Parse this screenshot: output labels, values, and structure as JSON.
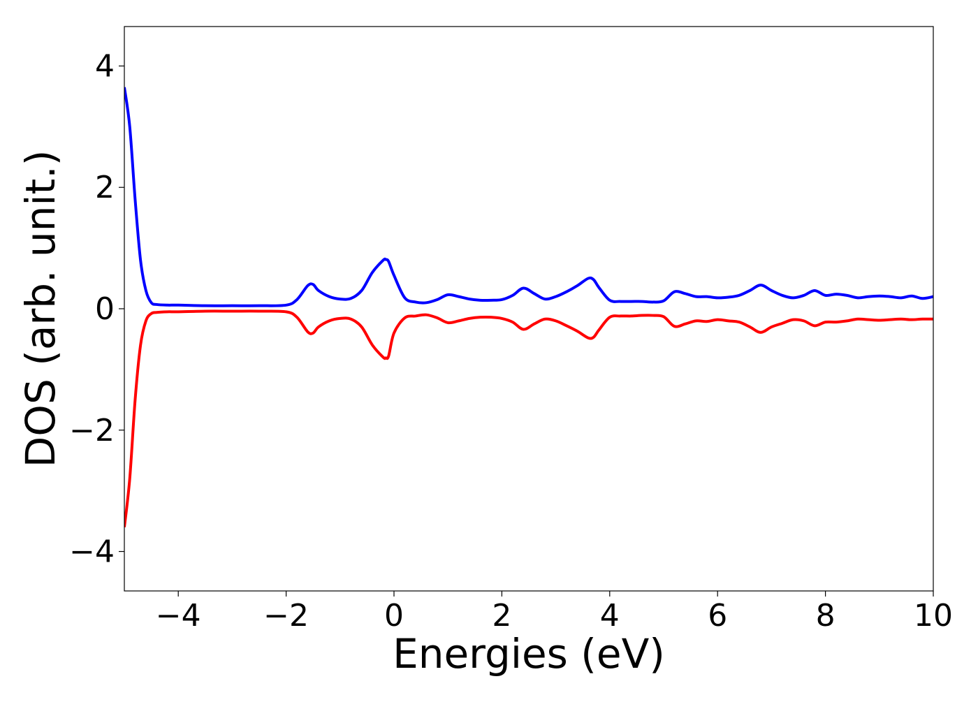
{
  "chart_data": {
    "type": "line",
    "title": "",
    "xlabel": "Energies (eV)",
    "ylabel": "DOS (arb. unit.)",
    "xlim": [
      -5,
      10
    ],
    "ylim": [
      -4.65,
      4.65
    ],
    "xticks": [
      -4,
      -2,
      0,
      2,
      4,
      6,
      8,
      10
    ],
    "yticks": [
      -4,
      -2,
      0,
      2,
      4
    ],
    "xtick_labels": [
      "−4",
      "−2",
      "0",
      "2",
      "4",
      "6",
      "8",
      "10"
    ],
    "ytick_labels": [
      "−4",
      "−2",
      "0",
      "2",
      "4"
    ],
    "grid": false,
    "legend": false,
    "series": [
      {
        "color": "#0000ff",
        "x": [
          -5.0,
          -4.9,
          -4.8,
          -4.7,
          -4.6,
          -4.5,
          -4.4,
          -4.2,
          -4.0,
          -3.5,
          -3.0,
          -2.5,
          -2.0,
          -1.8,
          -1.6,
          -1.5,
          -1.4,
          -1.2,
          -1.0,
          -0.8,
          -0.6,
          -0.4,
          -0.2,
          -0.15,
          -0.1,
          0.0,
          0.2,
          0.4,
          0.6,
          0.8,
          1.0,
          1.2,
          1.4,
          1.6,
          1.8,
          2.0,
          2.2,
          2.4,
          2.6,
          2.8,
          3.0,
          3.2,
          3.4,
          3.6,
          3.7,
          3.8,
          4.0,
          4.2,
          4.4,
          4.6,
          4.8,
          5.0,
          5.2,
          5.4,
          5.6,
          5.8,
          6.0,
          6.2,
          6.4,
          6.6,
          6.8,
          7.0,
          7.2,
          7.4,
          7.6,
          7.8,
          8.0,
          8.2,
          8.4,
          8.6,
          8.8,
          9.0,
          9.2,
          9.4,
          9.6,
          9.8,
          10.0
        ],
        "y": [
          3.65,
          3.0,
          1.8,
          0.8,
          0.3,
          0.1,
          0.07,
          0.06,
          0.06,
          0.05,
          0.05,
          0.05,
          0.06,
          0.15,
          0.38,
          0.4,
          0.3,
          0.2,
          0.16,
          0.17,
          0.3,
          0.6,
          0.8,
          0.81,
          0.78,
          0.55,
          0.18,
          0.11,
          0.1,
          0.15,
          0.23,
          0.2,
          0.16,
          0.14,
          0.14,
          0.15,
          0.22,
          0.34,
          0.25,
          0.16,
          0.2,
          0.28,
          0.38,
          0.5,
          0.48,
          0.35,
          0.14,
          0.12,
          0.12,
          0.12,
          0.11,
          0.13,
          0.28,
          0.25,
          0.2,
          0.2,
          0.18,
          0.19,
          0.22,
          0.3,
          0.39,
          0.3,
          0.22,
          0.18,
          0.22,
          0.3,
          0.22,
          0.24,
          0.22,
          0.18,
          0.2,
          0.21,
          0.2,
          0.18,
          0.21,
          0.17,
          0.2
        ]
      },
      {
        "color": "#ff0000",
        "x": [
          -5.0,
          -4.9,
          -4.8,
          -4.7,
          -4.6,
          -4.5,
          -4.4,
          -4.2,
          -4.0,
          -3.5,
          -3.0,
          -2.5,
          -2.0,
          -1.8,
          -1.6,
          -1.5,
          -1.4,
          -1.2,
          -1.0,
          -0.8,
          -0.6,
          -0.4,
          -0.2,
          -0.15,
          -0.1,
          0.0,
          0.2,
          0.4,
          0.6,
          0.8,
          1.0,
          1.2,
          1.4,
          1.6,
          1.8,
          2.0,
          2.2,
          2.4,
          2.6,
          2.8,
          3.0,
          3.2,
          3.4,
          3.6,
          3.7,
          3.8,
          4.0,
          4.2,
          4.4,
          4.6,
          4.8,
          5.0,
          5.2,
          5.4,
          5.6,
          5.8,
          6.0,
          6.2,
          6.4,
          6.6,
          6.8,
          7.0,
          7.2,
          7.4,
          7.6,
          7.8,
          8.0,
          8.2,
          8.4,
          8.6,
          8.8,
          9.0,
          9.2,
          9.4,
          9.6,
          9.8,
          10.0
        ],
        "y": [
          -3.6,
          -2.8,
          -1.5,
          -0.6,
          -0.2,
          -0.08,
          -0.06,
          -0.05,
          -0.05,
          -0.04,
          -0.04,
          -0.04,
          -0.05,
          -0.14,
          -0.38,
          -0.4,
          -0.3,
          -0.2,
          -0.16,
          -0.17,
          -0.3,
          -0.6,
          -0.8,
          -0.81,
          -0.78,
          -0.4,
          -0.15,
          -0.12,
          -0.1,
          -0.15,
          -0.23,
          -0.2,
          -0.16,
          -0.14,
          -0.14,
          -0.16,
          -0.22,
          -0.34,
          -0.25,
          -0.17,
          -0.2,
          -0.28,
          -0.37,
          -0.48,
          -0.47,
          -0.35,
          -0.14,
          -0.12,
          -0.12,
          -0.11,
          -0.11,
          -0.13,
          -0.29,
          -0.25,
          -0.2,
          -0.21,
          -0.18,
          -0.2,
          -0.22,
          -0.3,
          -0.39,
          -0.3,
          -0.24,
          -0.18,
          -0.2,
          -0.28,
          -0.22,
          -0.22,
          -0.2,
          -0.17,
          -0.18,
          -0.19,
          -0.18,
          -0.17,
          -0.18,
          -0.17,
          -0.17
        ]
      }
    ]
  }
}
